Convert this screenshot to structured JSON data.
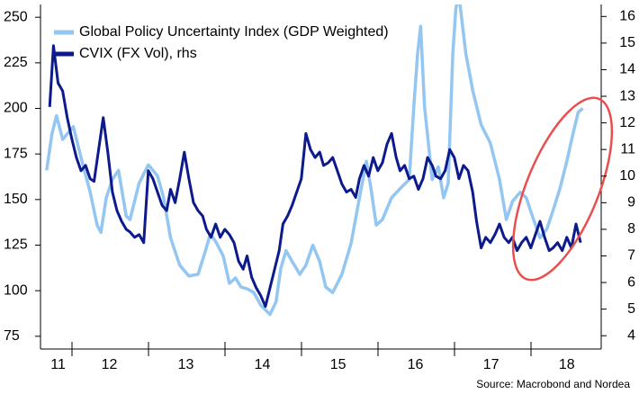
{
  "chart_data": {
    "type": "line",
    "legend": "upper left",
    "source": "Source: Macrobond and Nordea",
    "xlim": [
      2011.59,
      2018.92
    ],
    "xticks": [
      {
        "value": 2011.82,
        "label": "11"
      },
      {
        "value": 2012.49,
        "label": "12"
      },
      {
        "value": 2013.49,
        "label": "13"
      },
      {
        "value": 2014.49,
        "label": "14"
      },
      {
        "value": 2015.48,
        "label": "15"
      },
      {
        "value": 2016.49,
        "label": "16"
      },
      {
        "value": 2017.48,
        "label": "17"
      },
      {
        "value": 2018.47,
        "label": "18"
      }
    ],
    "ylim": [
      68,
      257
    ],
    "yticks": [
      75,
      100,
      125,
      150,
      175,
      200,
      225,
      250
    ],
    "y2lim": [
      3.5,
      16.45
    ],
    "y2ticks": [
      4,
      5,
      6,
      7,
      8,
      9,
      10,
      11,
      12,
      13,
      14,
      15,
      16
    ],
    "series": [
      {
        "name": "Global Policy Uncertainty Index (GDP Weighted)",
        "color": "#93c6f0",
        "axis": "y",
        "x": [
          2011.67,
          2011.74,
          2011.8,
          2011.88,
          2011.94,
          2012.02,
          2012.12,
          2012.24,
          2012.33,
          2012.38,
          2012.45,
          2012.53,
          2012.61,
          2012.71,
          2012.76,
          2012.88,
          2013.0,
          2013.12,
          2013.2,
          2013.29,
          2013.41,
          2013.53,
          2013.65,
          2013.74,
          2013.81,
          2013.88,
          2013.98,
          2014.06,
          2014.14,
          2014.21,
          2014.29,
          2014.38,
          2014.47,
          2014.59,
          2014.67,
          2014.73,
          2014.8,
          2014.88,
          2014.98,
          2015.06,
          2015.15,
          2015.24,
          2015.32,
          2015.41,
          2015.53,
          2015.65,
          2015.76,
          2015.85,
          2015.91,
          2015.98,
          2016.06,
          2016.18,
          2016.29,
          2016.41,
          2016.47,
          2016.52,
          2016.56,
          2016.61,
          2016.71,
          2016.79,
          2016.86,
          2016.92,
          2016.98,
          2017.02,
          2017.06,
          2017.15,
          2017.24,
          2017.35,
          2017.47,
          2017.59,
          2017.68,
          2017.76,
          2017.86,
          2017.94,
          2018.02,
          2018.12,
          2018.21,
          2018.29,
          2018.38,
          2018.47,
          2018.55,
          2018.62,
          2018.68
        ],
        "values": [
          166,
          186,
          196,
          183,
          186,
          190,
          173,
          154,
          136,
          132,
          151,
          161,
          166,
          141,
          139,
          159,
          169,
          163,
          151,
          129,
          114,
          108,
          109,
          121,
          131,
          127,
          119,
          104,
          107,
          102,
          101,
          99,
          92,
          87,
          94,
          112,
          122,
          116,
          109,
          114,
          125,
          116,
          102,
          99,
          109,
          126,
          151,
          171,
          156,
          136,
          139,
          151,
          156,
          161,
          201,
          230,
          245,
          201,
          161,
          168,
          151,
          159,
          230,
          255,
          262,
          230,
          210,
          191,
          181,
          161,
          139,
          149,
          154,
          151,
          141,
          129,
          134,
          144,
          156,
          171,
          186,
          198,
          200
        ]
      },
      {
        "name": "CVIX (FX Vol), rhs",
        "color": "#0d1a8c",
        "axis": "y2",
        "x": [
          2011.71,
          2011.76,
          2011.82,
          2011.88,
          2011.94,
          2012.0,
          2012.06,
          2012.12,
          2012.18,
          2012.24,
          2012.29,
          2012.35,
          2012.41,
          2012.47,
          2012.53,
          2012.59,
          2012.65,
          2012.71,
          2012.76,
          2012.82,
          2012.88,
          2012.94,
          2013.0,
          2013.06,
          2013.12,
          2013.18,
          2013.24,
          2013.29,
          2013.35,
          2013.41,
          2013.47,
          2013.53,
          2013.59,
          2013.65,
          2013.71,
          2013.76,
          2013.82,
          2013.88,
          2013.94,
          2014.0,
          2014.06,
          2014.12,
          2014.18,
          2014.24,
          2014.29,
          2014.35,
          2014.41,
          2014.47,
          2014.53,
          2014.59,
          2014.65,
          2014.71,
          2014.76,
          2014.82,
          2014.88,
          2014.94,
          2015.0,
          2015.06,
          2015.12,
          2015.18,
          2015.24,
          2015.29,
          2015.35,
          2015.41,
          2015.47,
          2015.53,
          2015.59,
          2015.65,
          2015.71,
          2015.76,
          2015.82,
          2015.88,
          2015.94,
          2016.0,
          2016.06,
          2016.12,
          2016.18,
          2016.24,
          2016.29,
          2016.35,
          2016.41,
          2016.47,
          2016.53,
          2016.59,
          2016.65,
          2016.71,
          2016.76,
          2016.82,
          2016.88,
          2016.94,
          2017.0,
          2017.06,
          2017.12,
          2017.18,
          2017.24,
          2017.29,
          2017.35,
          2017.41,
          2017.47,
          2017.53,
          2017.59,
          2017.65,
          2017.71,
          2017.76,
          2017.82,
          2017.88,
          2017.94,
          2018.0,
          2018.06,
          2018.12,
          2018.18,
          2018.24,
          2018.29,
          2018.35,
          2018.41,
          2018.47,
          2018.53,
          2018.59,
          2018.65
        ],
        "values": [
          12.6,
          14.9,
          13.5,
          13.2,
          12.2,
          11.4,
          10.7,
          10.2,
          10.4,
          9.9,
          9.8,
          11.0,
          12.2,
          10.9,
          9.4,
          8.7,
          8.3,
          8.0,
          7.9,
          7.7,
          7.8,
          7.5,
          10.2,
          9.9,
          9.4,
          8.9,
          8.7,
          9.5,
          9.0,
          9.9,
          10.9,
          9.9,
          9.0,
          8.7,
          8.5,
          8.0,
          7.7,
          8.2,
          7.7,
          8.0,
          7.8,
          7.5,
          6.8,
          6.5,
          7.0,
          6.2,
          5.8,
          5.5,
          5.1,
          5.8,
          6.5,
          7.2,
          8.2,
          8.5,
          8.9,
          9.4,
          9.9,
          11.6,
          11.0,
          10.7,
          10.9,
          10.4,
          10.5,
          10.7,
          10.2,
          9.7,
          9.4,
          9.5,
          9.2,
          9.9,
          10.4,
          10.0,
          10.7,
          10.2,
          10.5,
          11.2,
          11.6,
          10.7,
          10.2,
          10.4,
          9.9,
          10.0,
          9.5,
          9.9,
          10.7,
          10.4,
          10.0,
          9.9,
          10.2,
          11.0,
          10.7,
          9.9,
          10.4,
          10.2,
          9.4,
          8.3,
          7.3,
          7.7,
          7.5,
          7.8,
          8.2,
          7.7,
          7.5,
          7.7,
          7.2,
          7.5,
          7.7,
          7.3,
          7.8,
          8.3,
          7.7,
          7.2,
          7.3,
          7.5,
          7.2,
          7.7,
          7.3,
          8.2,
          7.5
        ]
      }
    ]
  }
}
